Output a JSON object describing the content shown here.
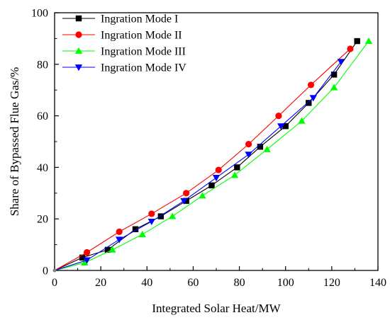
{
  "chart_data": {
    "type": "line",
    "title": "",
    "xlabel": "Integrated Solar Heat/MW",
    "ylabel": "Share of Bypassed Flue Gas/%",
    "xlim": [
      0,
      140
    ],
    "ylim": [
      0,
      100
    ],
    "x_ticks": [
      "0",
      "20",
      "40",
      "60",
      "80",
      "100",
      "120",
      "140"
    ],
    "y_ticks": [
      "0",
      "20",
      "40",
      "60",
      "80",
      "100"
    ],
    "grid": false,
    "legend_position": "top-left",
    "series": [
      {
        "name": "Ingration Mode I",
        "color": "#000000",
        "marker": "square",
        "x": [
          0,
          12,
          23,
          35,
          46,
          57,
          68,
          79,
          89,
          100,
          110,
          121,
          131
        ],
        "y": [
          0,
          5,
          8,
          16,
          21,
          27,
          33,
          40,
          48,
          56,
          65,
          76,
          89
        ]
      },
      {
        "name": "Ingration Mode II",
        "color": "#ff0000",
        "marker": "circle",
        "x": [
          0,
          14,
          28,
          42,
          57,
          71,
          84,
          97,
          111,
          128
        ],
        "y": [
          0,
          7,
          15,
          22,
          30,
          39,
          49,
          60,
          72,
          86
        ]
      },
      {
        "name": "Ingration Mode III",
        "color": "#00ff00",
        "marker": "triangle-up",
        "x": [
          0,
          13,
          25,
          38,
          51,
          64,
          78,
          92,
          107,
          121,
          136
        ],
        "y": [
          0,
          3,
          8,
          14,
          21,
          29,
          37,
          47,
          58,
          71,
          89
        ]
      },
      {
        "name": "Ingration Mode IV",
        "color": "#0000ff",
        "marker": "triangle-down",
        "x": [
          0,
          14,
          28,
          42,
          56,
          70,
          84,
          98,
          112,
          124
        ],
        "y": [
          0,
          4,
          12,
          19,
          27,
          36,
          45,
          56,
          67,
          81
        ]
      }
    ]
  }
}
